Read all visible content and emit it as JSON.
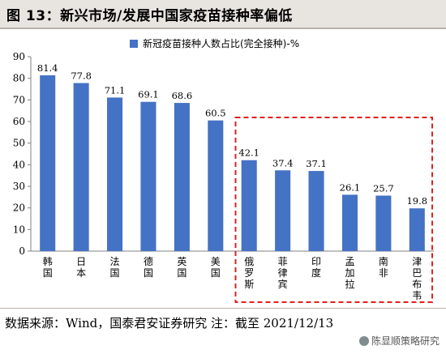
{
  "figure_title": "图 13：新兴市场/发展中国家疫苗接种率偏低",
  "footer": "数据来源：Wind，国泰君安证券研究     注：截至 2021/12/13",
  "watermark": "陈显顺策略研究",
  "colors": {
    "bar": "#4472c4",
    "highlight_box": "#e02020",
    "grid": "#d9d9d9"
  },
  "chart_data": {
    "type": "bar",
    "title": "",
    "xlabel": "",
    "ylabel": "",
    "legend": {
      "label": "新冠疫苗接种人数占比(完全接种)-%",
      "placement": "top-right"
    },
    "categories": [
      "韩国",
      "日本",
      "法国",
      "德国",
      "英国",
      "美国",
      "俄罗斯",
      "菲律宾",
      "印度",
      "孟加拉",
      "南非",
      "津巴布韦"
    ],
    "values": [
      81.4,
      77.8,
      71.1,
      69.1,
      68.6,
      60.5,
      42.1,
      37.4,
      37.1,
      26.1,
      25.7,
      19.8
    ],
    "value_labels": [
      "81.4",
      "77.8",
      "71.1",
      "69.1",
      "68.6",
      "60.5",
      "42.1",
      "37.4",
      "37.1",
      "26.1",
      "25.7",
      "19.8"
    ],
    "ylim": [
      0,
      90
    ],
    "yticks": [
      "0",
      "10",
      "20",
      "30",
      "40",
      "50",
      "60",
      "70",
      "80",
      "90"
    ],
    "grid": false,
    "highlight_range": [
      6,
      11
    ]
  }
}
